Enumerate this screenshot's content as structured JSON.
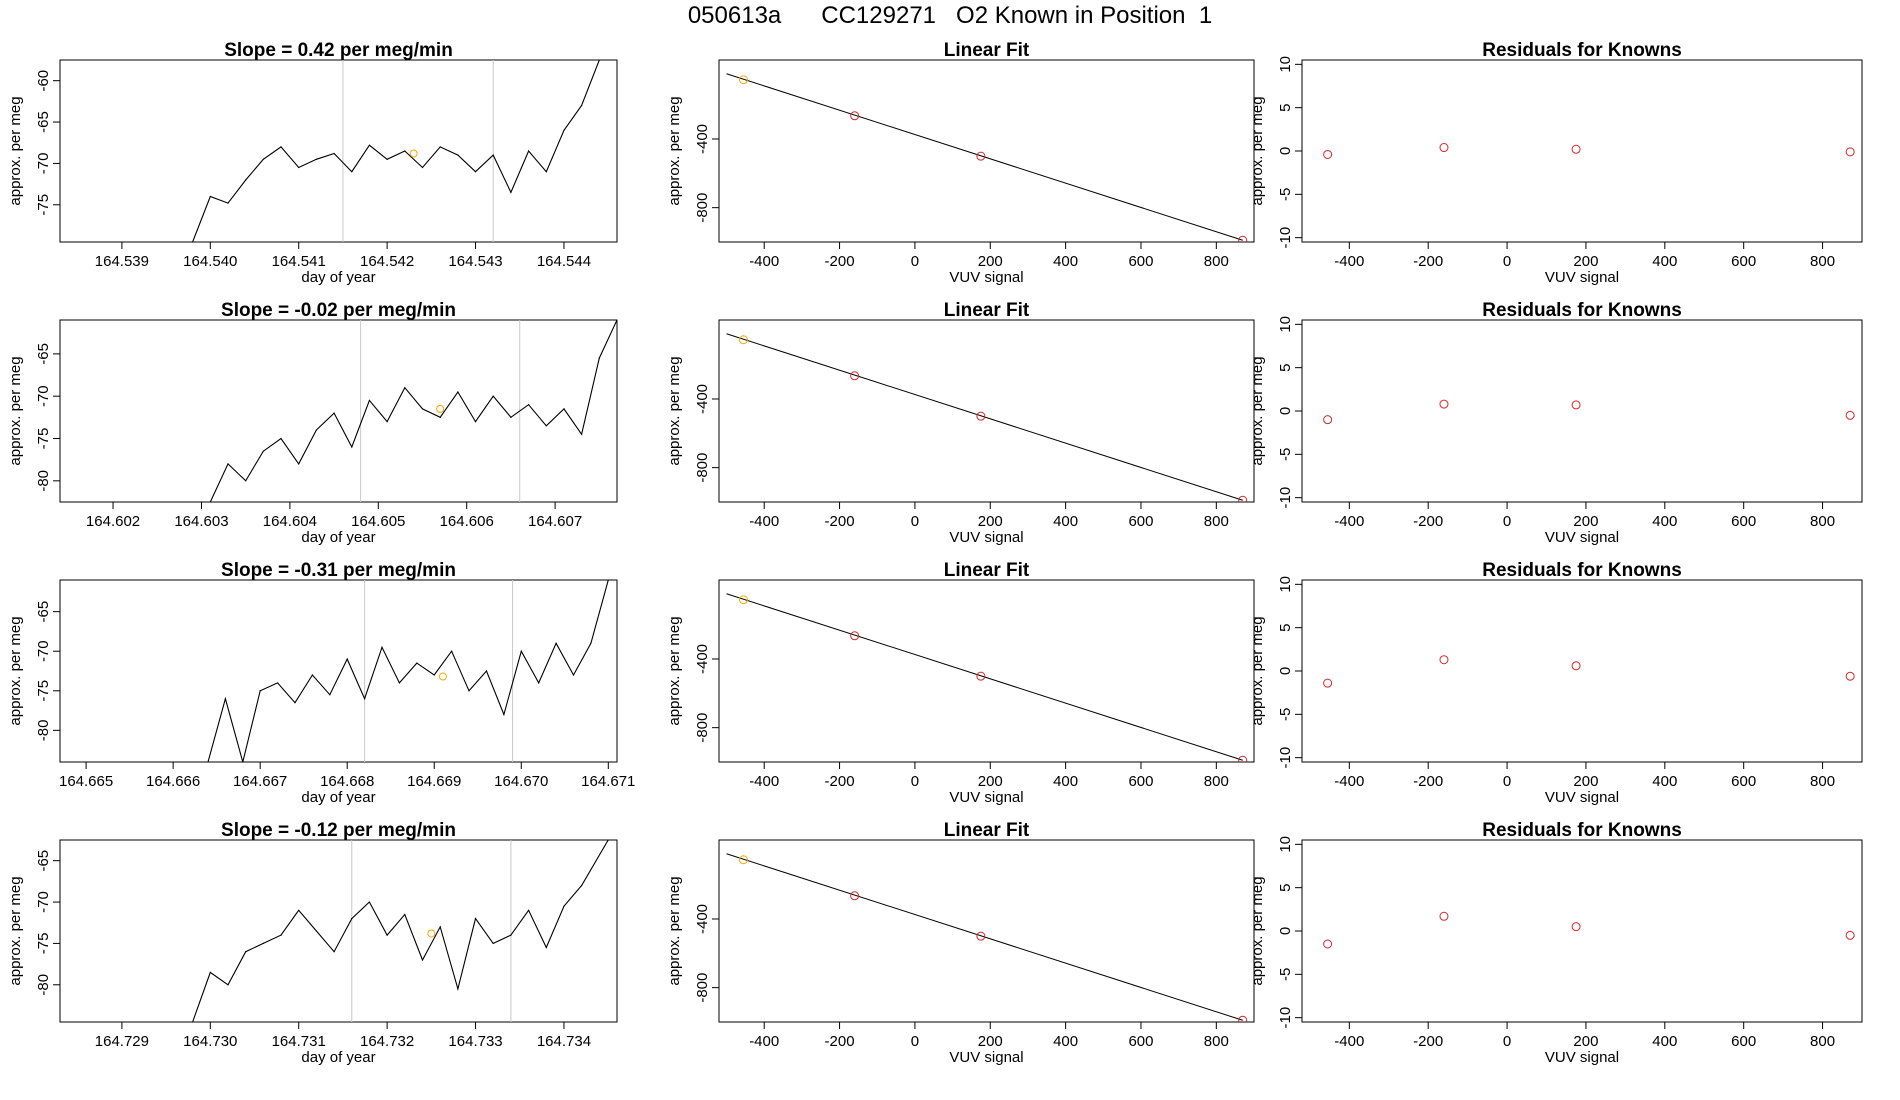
{
  "page": {
    "title": "050613a      CC129271   O2 Known in Position  1"
  },
  "colors": {
    "line": "#000000",
    "known_point": "#d62728",
    "highlight_point": "#ffa500",
    "marker_line": "#c8c8c8"
  },
  "chart_data": [
    {
      "type": "line",
      "panel": "time-series",
      "row": 1,
      "title": "Slope =  0.42  per meg/min",
      "xlabel": "day of year",
      "ylabel": "approx. per meg",
      "xlim": [
        164.5383,
        164.5446
      ],
      "ylim": [
        -79.5,
        -57.5
      ],
      "xticks": [
        164.539,
        164.54,
        164.541,
        164.542,
        164.543,
        164.544
      ],
      "xtick_labels": [
        "164.539",
        "164.540",
        "164.541",
        "164.542",
        "164.543",
        "164.544"
      ],
      "yticks": [
        -75,
        -70,
        -65,
        -60
      ],
      "ytick_labels": [
        "-75",
        "-70",
        "-65",
        "-60"
      ],
      "vlines": [
        164.5415,
        164.5432
      ],
      "highlight": {
        "x": 164.5423,
        "y": -68.8
      },
      "x": [
        164.5398,
        164.54,
        164.5402,
        164.5404,
        164.5406,
        164.5408,
        164.541,
        164.5412,
        164.5414,
        164.5416,
        164.5418,
        164.542,
        164.5422,
        164.5424,
        164.5426,
        164.5428,
        164.543,
        164.5432,
        164.5434,
        164.5436,
        164.5438,
        164.544,
        164.5442,
        164.5444
      ],
      "y": [
        -79.5,
        -74.0,
        -74.8,
        -72.0,
        -69.5,
        -68.0,
        -70.5,
        -69.5,
        -68.8,
        -71.0,
        -67.8,
        -69.5,
        -68.5,
        -70.5,
        -68.0,
        -69.0,
        -71.0,
        -69.0,
        -73.5,
        -68.5,
        -71.0,
        -66.0,
        -63.0,
        -57.5
      ]
    },
    {
      "type": "scatter",
      "panel": "linear-fit",
      "row": 1,
      "title": "Linear Fit",
      "xlabel": "VUV signal",
      "ylabel": "approx. per meg",
      "xlim": [
        -520,
        900
      ],
      "ylim": [
        -1000,
        60
      ],
      "xticks": [
        -400,
        -200,
        0,
        200,
        400,
        600,
        800
      ],
      "xtick_labels": [
        "-400",
        "-200",
        "0",
        "200",
        "400",
        "600",
        "800"
      ],
      "yticks": [
        -800,
        -400
      ],
      "ytick_labels": [
        "-800",
        "-400"
      ],
      "fit_line": {
        "x": [
          -500,
          870
        ],
        "y": [
          -20,
          -990
        ]
      },
      "points": {
        "x": [
          -455,
          -160,
          175,
          870
        ],
        "y": [
          -55,
          -265,
          -500,
          -990
        ]
      },
      "highlight_index": 0
    },
    {
      "type": "scatter",
      "panel": "residuals",
      "row": 1,
      "title": "Residuals for Knowns",
      "xlabel": "VUV signal",
      "ylabel": "approx. per meg",
      "xlim": [
        -520,
        900
      ],
      "ylim": [
        -10.5,
        10.5
      ],
      "xticks": [
        -400,
        -200,
        0,
        200,
        400,
        600,
        800
      ],
      "xtick_labels": [
        "-400",
        "-200",
        "0",
        "200",
        "400",
        "600",
        "800"
      ],
      "yticks": [
        -10,
        -5,
        0,
        5,
        10
      ],
      "ytick_labels": [
        "-10",
        "-5",
        "0",
        "5",
        "10"
      ],
      "points": {
        "x": [
          -455,
          -160,
          175,
          870
        ],
        "y": [
          -0.4,
          0.4,
          0.2,
          -0.1
        ]
      }
    },
    {
      "type": "line",
      "panel": "time-series",
      "row": 2,
      "title": "Slope =  -0.02  per meg/min",
      "xlabel": "day of year",
      "ylabel": "approx. per meg",
      "xlim": [
        164.6014,
        164.6077
      ],
      "ylim": [
        -82.5,
        -61
      ],
      "xticks": [
        164.602,
        164.603,
        164.604,
        164.605,
        164.606,
        164.607
      ],
      "xtick_labels": [
        "164.602",
        "164.603",
        "164.604",
        "164.605",
        "164.606",
        "164.607"
      ],
      "yticks": [
        -80,
        -75,
        -70,
        -65
      ],
      "ytick_labels": [
        "-80",
        "-75",
        "-70",
        "-65"
      ],
      "vlines": [
        164.6048,
        164.6066
      ],
      "highlight": {
        "x": 164.6057,
        "y": -71.5
      },
      "x": [
        164.6031,
        164.6033,
        164.6035,
        164.6037,
        164.6039,
        164.6041,
        164.6043,
        164.6045,
        164.6047,
        164.6049,
        164.6051,
        164.6053,
        164.6055,
        164.6057,
        164.6059,
        164.6061,
        164.6063,
        164.6065,
        164.6067,
        164.6069,
        164.6071,
        164.6073,
        164.6075,
        164.6077
      ],
      "y": [
        -82.5,
        -78.0,
        -80.0,
        -76.5,
        -75.0,
        -78.0,
        -74.0,
        -72.0,
        -76.0,
        -70.5,
        -73.0,
        -69.0,
        -71.5,
        -72.5,
        -69.5,
        -73.0,
        -70.0,
        -72.5,
        -71.0,
        -73.5,
        -71.5,
        -74.5,
        -65.5,
        -61.0
      ]
    },
    {
      "type": "scatter",
      "panel": "linear-fit",
      "row": 2,
      "title": "Linear Fit",
      "xlabel": "VUV signal",
      "ylabel": "approx. per meg",
      "xlim": [
        -520,
        900
      ],
      "ylim": [
        -1000,
        60
      ],
      "xticks": [
        -400,
        -200,
        0,
        200,
        400,
        600,
        800
      ],
      "xtick_labels": [
        "-400",
        "-200",
        "0",
        "200",
        "400",
        "600",
        "800"
      ],
      "yticks": [
        -800,
        -400
      ],
      "ytick_labels": [
        "-800",
        "-400"
      ],
      "fit_line": {
        "x": [
          -500,
          870
        ],
        "y": [
          -20,
          -990
        ]
      },
      "points": {
        "x": [
          -455,
          -160,
          175,
          870
        ],
        "y": [
          -55,
          -265,
          -500,
          -990
        ]
      },
      "highlight_index": 0
    },
    {
      "type": "scatter",
      "panel": "residuals",
      "row": 2,
      "title": "Residuals for Knowns",
      "xlabel": "VUV signal",
      "ylabel": "approx. per meg",
      "xlim": [
        -520,
        900
      ],
      "ylim": [
        -10.5,
        10.5
      ],
      "xticks": [
        -400,
        -200,
        0,
        200,
        400,
        600,
        800
      ],
      "xtick_labels": [
        "-400",
        "-200",
        "0",
        "200",
        "400",
        "600",
        "800"
      ],
      "yticks": [
        -10,
        -5,
        0,
        5,
        10
      ],
      "ytick_labels": [
        "-10",
        "-5",
        "0",
        "5",
        "10"
      ],
      "points": {
        "x": [
          -455,
          -160,
          175,
          870
        ],
        "y": [
          -1.0,
          0.8,
          0.7,
          -0.5
        ]
      }
    },
    {
      "type": "line",
      "panel": "time-series",
      "row": 3,
      "title": "Slope =  -0.31  per meg/min",
      "xlabel": "day of year",
      "ylabel": "approx. per meg",
      "xlim": [
        164.6647,
        164.6711
      ],
      "ylim": [
        -84,
        -61
      ],
      "xticks": [
        164.665,
        164.666,
        164.667,
        164.668,
        164.669,
        164.67,
        164.671
      ],
      "xtick_labels": [
        "164.665",
        "164.666",
        "164.667",
        "164.668",
        "164.669",
        "164.670",
        "164.671"
      ],
      "yticks": [
        -80,
        -75,
        -70,
        -65
      ],
      "ytick_labels": [
        "-80",
        "-75",
        "-70",
        "-65"
      ],
      "vlines": [
        164.6682,
        164.6699
      ],
      "highlight": {
        "x": 164.6691,
        "y": -73.2
      },
      "x": [
        164.6664,
        164.6666,
        164.6668,
        164.667,
        164.6672,
        164.6674,
        164.6676,
        164.6678,
        164.668,
        164.6682,
        164.6684,
        164.6686,
        164.6688,
        164.669,
        164.6692,
        164.6694,
        164.6696,
        164.6698,
        164.67,
        164.6702,
        164.6704,
        164.6706,
        164.6708,
        164.671
      ],
      "y": [
        -84.0,
        -76.0,
        -84.0,
        -75.0,
        -74.0,
        -76.5,
        -73.0,
        -75.5,
        -71.0,
        -76.0,
        -69.5,
        -74.0,
        -71.5,
        -73.0,
        -70.0,
        -75.0,
        -72.5,
        -78.0,
        -70.0,
        -74.0,
        -69.0,
        -73.0,
        -69.0,
        -61.0
      ]
    },
    {
      "type": "scatter",
      "panel": "linear-fit",
      "row": 3,
      "title": "Linear Fit",
      "xlabel": "VUV signal",
      "ylabel": "approx. per meg",
      "xlim": [
        -520,
        900
      ],
      "ylim": [
        -1000,
        60
      ],
      "xticks": [
        -400,
        -200,
        0,
        200,
        400,
        600,
        800
      ],
      "xtick_labels": [
        "-400",
        "-200",
        "0",
        "200",
        "400",
        "600",
        "800"
      ],
      "yticks": [
        -800,
        -400
      ],
      "ytick_labels": [
        "-800",
        "-400"
      ],
      "fit_line": {
        "x": [
          -500,
          870
        ],
        "y": [
          -20,
          -990
        ]
      },
      "points": {
        "x": [
          -455,
          -160,
          175,
          870
        ],
        "y": [
          -55,
          -265,
          -500,
          -990
        ]
      },
      "highlight_index": 0
    },
    {
      "type": "scatter",
      "panel": "residuals",
      "row": 3,
      "title": "Residuals for Knowns",
      "xlabel": "VUV signal",
      "ylabel": "approx. per meg",
      "xlim": [
        -520,
        900
      ],
      "ylim": [
        -10.5,
        10.5
      ],
      "xticks": [
        -400,
        -200,
        0,
        200,
        400,
        600,
        800
      ],
      "xtick_labels": [
        "-400",
        "-200",
        "0",
        "200",
        "400",
        "600",
        "800"
      ],
      "yticks": [
        -10,
        -5,
        0,
        5,
        10
      ],
      "ytick_labels": [
        "-10",
        "-5",
        "0",
        "5",
        "10"
      ],
      "points": {
        "x": [
          -455,
          -160,
          175,
          870
        ],
        "y": [
          -1.4,
          1.3,
          0.6,
          -0.6
        ]
      }
    },
    {
      "type": "line",
      "panel": "time-series",
      "row": 4,
      "title": "Slope =  -0.12  per meg/min",
      "xlabel": "day of year",
      "ylabel": "approx. per meg",
      "xlim": [
        164.7283,
        164.7346
      ],
      "ylim": [
        -84.5,
        -62.5
      ],
      "xticks": [
        164.729,
        164.73,
        164.731,
        164.732,
        164.733,
        164.734
      ],
      "xtick_labels": [
        "164.729",
        "164.730",
        "164.731",
        "164.732",
        "164.733",
        "164.734"
      ],
      "yticks": [
        -80,
        -75,
        -70,
        -65
      ],
      "ytick_labels": [
        "-80",
        "-75",
        "-70",
        "-65"
      ],
      "vlines": [
        164.7316,
        164.7334
      ],
      "highlight": {
        "x": 164.7325,
        "y": -73.8
      },
      "x": [
        164.7298,
        164.73,
        164.7302,
        164.7304,
        164.7306,
        164.7308,
        164.731,
        164.7312,
        164.7314,
        164.7316,
        164.7318,
        164.732,
        164.7322,
        164.7324,
        164.7326,
        164.7328,
        164.733,
        164.7332,
        164.7334,
        164.7336,
        164.7338,
        164.734,
        164.7342,
        164.7345
      ],
      "y": [
        -84.5,
        -78.5,
        -80.0,
        -76.0,
        -75.0,
        -74.0,
        -71.0,
        -73.5,
        -76.0,
        -72.0,
        -70.0,
        -74.0,
        -71.5,
        -77.0,
        -73.0,
        -80.5,
        -72.0,
        -75.0,
        -74.0,
        -71.0,
        -75.5,
        -70.5,
        -68.0,
        -62.5
      ]
    },
    {
      "type": "scatter",
      "panel": "linear-fit",
      "row": 4,
      "title": "Linear Fit",
      "xlabel": "VUV signal",
      "ylabel": "approx. per meg",
      "xlim": [
        -520,
        900
      ],
      "ylim": [
        -1000,
        60
      ],
      "xticks": [
        -400,
        -200,
        0,
        200,
        400,
        600,
        800
      ],
      "xtick_labels": [
        "-400",
        "-200",
        "0",
        "200",
        "400",
        "600",
        "800"
      ],
      "yticks": [
        -800,
        -400
      ],
      "ytick_labels": [
        "-800",
        "-400"
      ],
      "fit_line": {
        "x": [
          -500,
          870
        ],
        "y": [
          -20,
          -990
        ]
      },
      "points": {
        "x": [
          -455,
          -160,
          175,
          870
        ],
        "y": [
          -55,
          -265,
          -500,
          -990
        ]
      },
      "highlight_index": 0
    },
    {
      "type": "scatter",
      "panel": "residuals",
      "row": 4,
      "title": "Residuals for Knowns",
      "xlabel": "VUV signal",
      "ylabel": "approx. per meg",
      "xlim": [
        -520,
        900
      ],
      "ylim": [
        -10.5,
        10.5
      ],
      "xticks": [
        -400,
        -200,
        0,
        200,
        400,
        600,
        800
      ],
      "xtick_labels": [
        "-400",
        "-200",
        "0",
        "200",
        "400",
        "600",
        "800"
      ],
      "yticks": [
        -10,
        -5,
        0,
        5,
        10
      ],
      "ytick_labels": [
        "-10",
        "-5",
        "0",
        "5",
        "10"
      ],
      "points": {
        "x": [
          -455,
          -160,
          175,
          870
        ],
        "y": [
          -1.5,
          1.7,
          0.5,
          -0.5
        ]
      }
    }
  ]
}
